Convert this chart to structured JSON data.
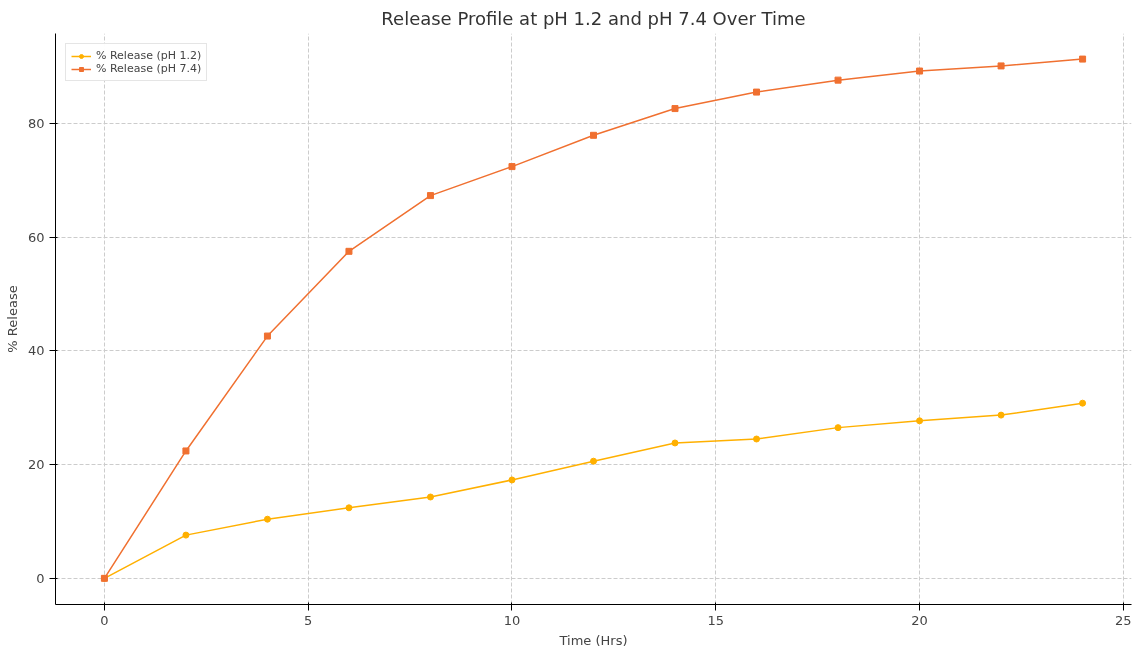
{
  "chart_data": {
    "type": "line",
    "title": "Release Profile at pH 1.2 and pH 7.4 Over Time",
    "xlabel": "Time (Hrs)",
    "ylabel": "% Release",
    "x": [
      0,
      2,
      4,
      6,
      8,
      10,
      12,
      14,
      16,
      18,
      20,
      22,
      24
    ],
    "series": [
      {
        "name": "% Release (pH 1.2)",
        "color": "#ffb000",
        "marker": "circle",
        "values": [
          0,
          7.6,
          10.4,
          12.4,
          14.3,
          17.3,
          20.6,
          23.8,
          24.5,
          26.5,
          27.7,
          28.7,
          30.8
        ]
      },
      {
        "name": "% Release (pH 7.4)",
        "color": "#f07030",
        "marker": "square",
        "values": [
          0,
          22.4,
          42.6,
          57.5,
          67.3,
          72.4,
          77.9,
          82.6,
          85.5,
          87.6,
          89.2,
          90.1,
          91.3
        ]
      }
    ],
    "xlim": [
      -1.2,
      25.2
    ],
    "ylim": [
      -4.6,
      95.8
    ],
    "xticks": [
      0,
      5,
      10,
      15,
      20,
      25
    ],
    "yticks": [
      0,
      20,
      40,
      60,
      80
    ],
    "grid": true,
    "legend": "top left",
    "line_style": "solid"
  }
}
